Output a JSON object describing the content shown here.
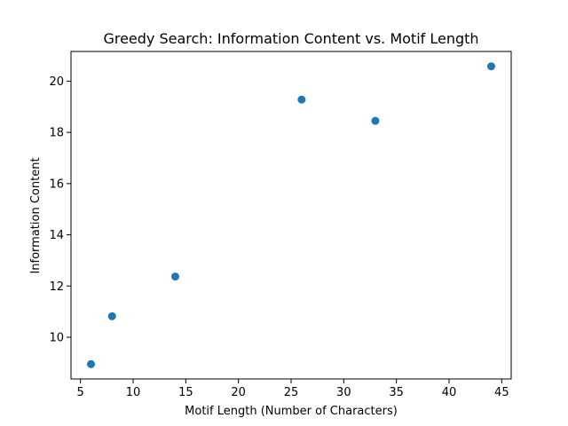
{
  "chart_data": {
    "type": "scatter",
    "title": "Greedy Search: Information Content vs. Motif Length",
    "xlabel": "Motif Length (Number of Characters)",
    "ylabel": "Information Content",
    "x": [
      6,
      8,
      14,
      26,
      33,
      44
    ],
    "y": [
      8.95,
      10.82,
      12.37,
      19.28,
      18.45,
      20.58
    ],
    "xlim": [
      4.1,
      45.9
    ],
    "ylim": [
      8.37,
      21.16
    ],
    "xticks": [
      5,
      10,
      15,
      20,
      25,
      30,
      35,
      40,
      45
    ],
    "yticks": [
      10,
      12,
      14,
      16,
      18,
      20
    ],
    "grid": false,
    "marker_color": "#1f77b4"
  }
}
